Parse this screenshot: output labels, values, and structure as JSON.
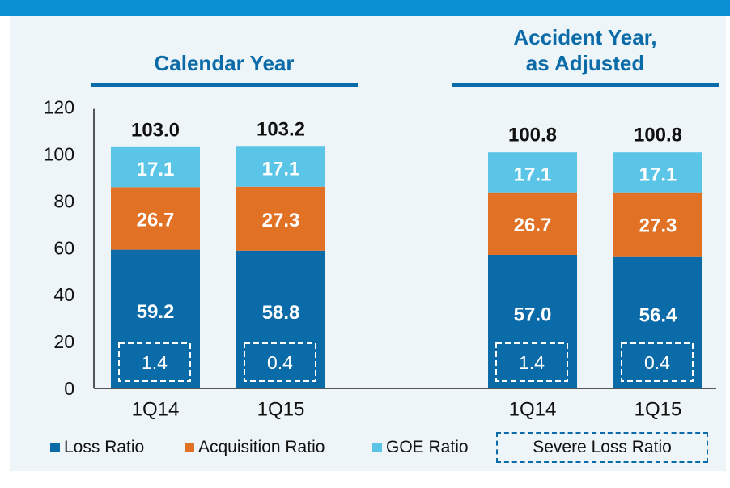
{
  "groups": [
    {
      "title_line1": "Calendar Year",
      "title_line2": ""
    },
    {
      "title_line1": "Accident Year,",
      "title_line2": "as Adjusted"
    }
  ],
  "legend": {
    "loss": "Loss Ratio",
    "acquisition": "Acquisition Ratio",
    "goe": "GOE Ratio",
    "severe": "Severe Loss Ratio"
  },
  "colors": {
    "loss": "#0b6aa8",
    "acquisition": "#e17124",
    "goe": "#5bc5e8",
    "header": "#0b6aa8",
    "bar_band": "#0b90d3"
  },
  "chart_data": {
    "type": "bar",
    "stacked": true,
    "categories": [
      "1Q14",
      "1Q15",
      "1Q14",
      "1Q15"
    ],
    "series": [
      {
        "name": "Loss Ratio",
        "values": [
          59.2,
          58.8,
          57.0,
          56.4
        ]
      },
      {
        "name": "Acquisition Ratio",
        "values": [
          26.7,
          27.3,
          26.7,
          27.3
        ]
      },
      {
        "name": "GOE Ratio",
        "values": [
          17.1,
          17.1,
          17.1,
          17.1
        ]
      }
    ],
    "severe_loss_ratio": [
      1.4,
      0.4,
      1.4,
      0.4
    ],
    "totals": [
      "103.0",
      "103.2",
      "100.8",
      "100.8"
    ],
    "value_labels": {
      "loss": [
        "59.2",
        "58.8",
        "57.0",
        "56.4"
      ],
      "acquisition": [
        "26.7",
        "27.3",
        "26.7",
        "27.3"
      ],
      "goe": [
        "17.1",
        "17.1",
        "17.1",
        "17.1"
      ],
      "severe": [
        "1.4",
        "0.4",
        "1.4",
        "0.4"
      ]
    },
    "yticks": [
      "0",
      "20",
      "40",
      "60",
      "80",
      "100",
      "120"
    ],
    "ylim": [
      0,
      120
    ],
    "grid": false,
    "legend_position": "bottom"
  }
}
